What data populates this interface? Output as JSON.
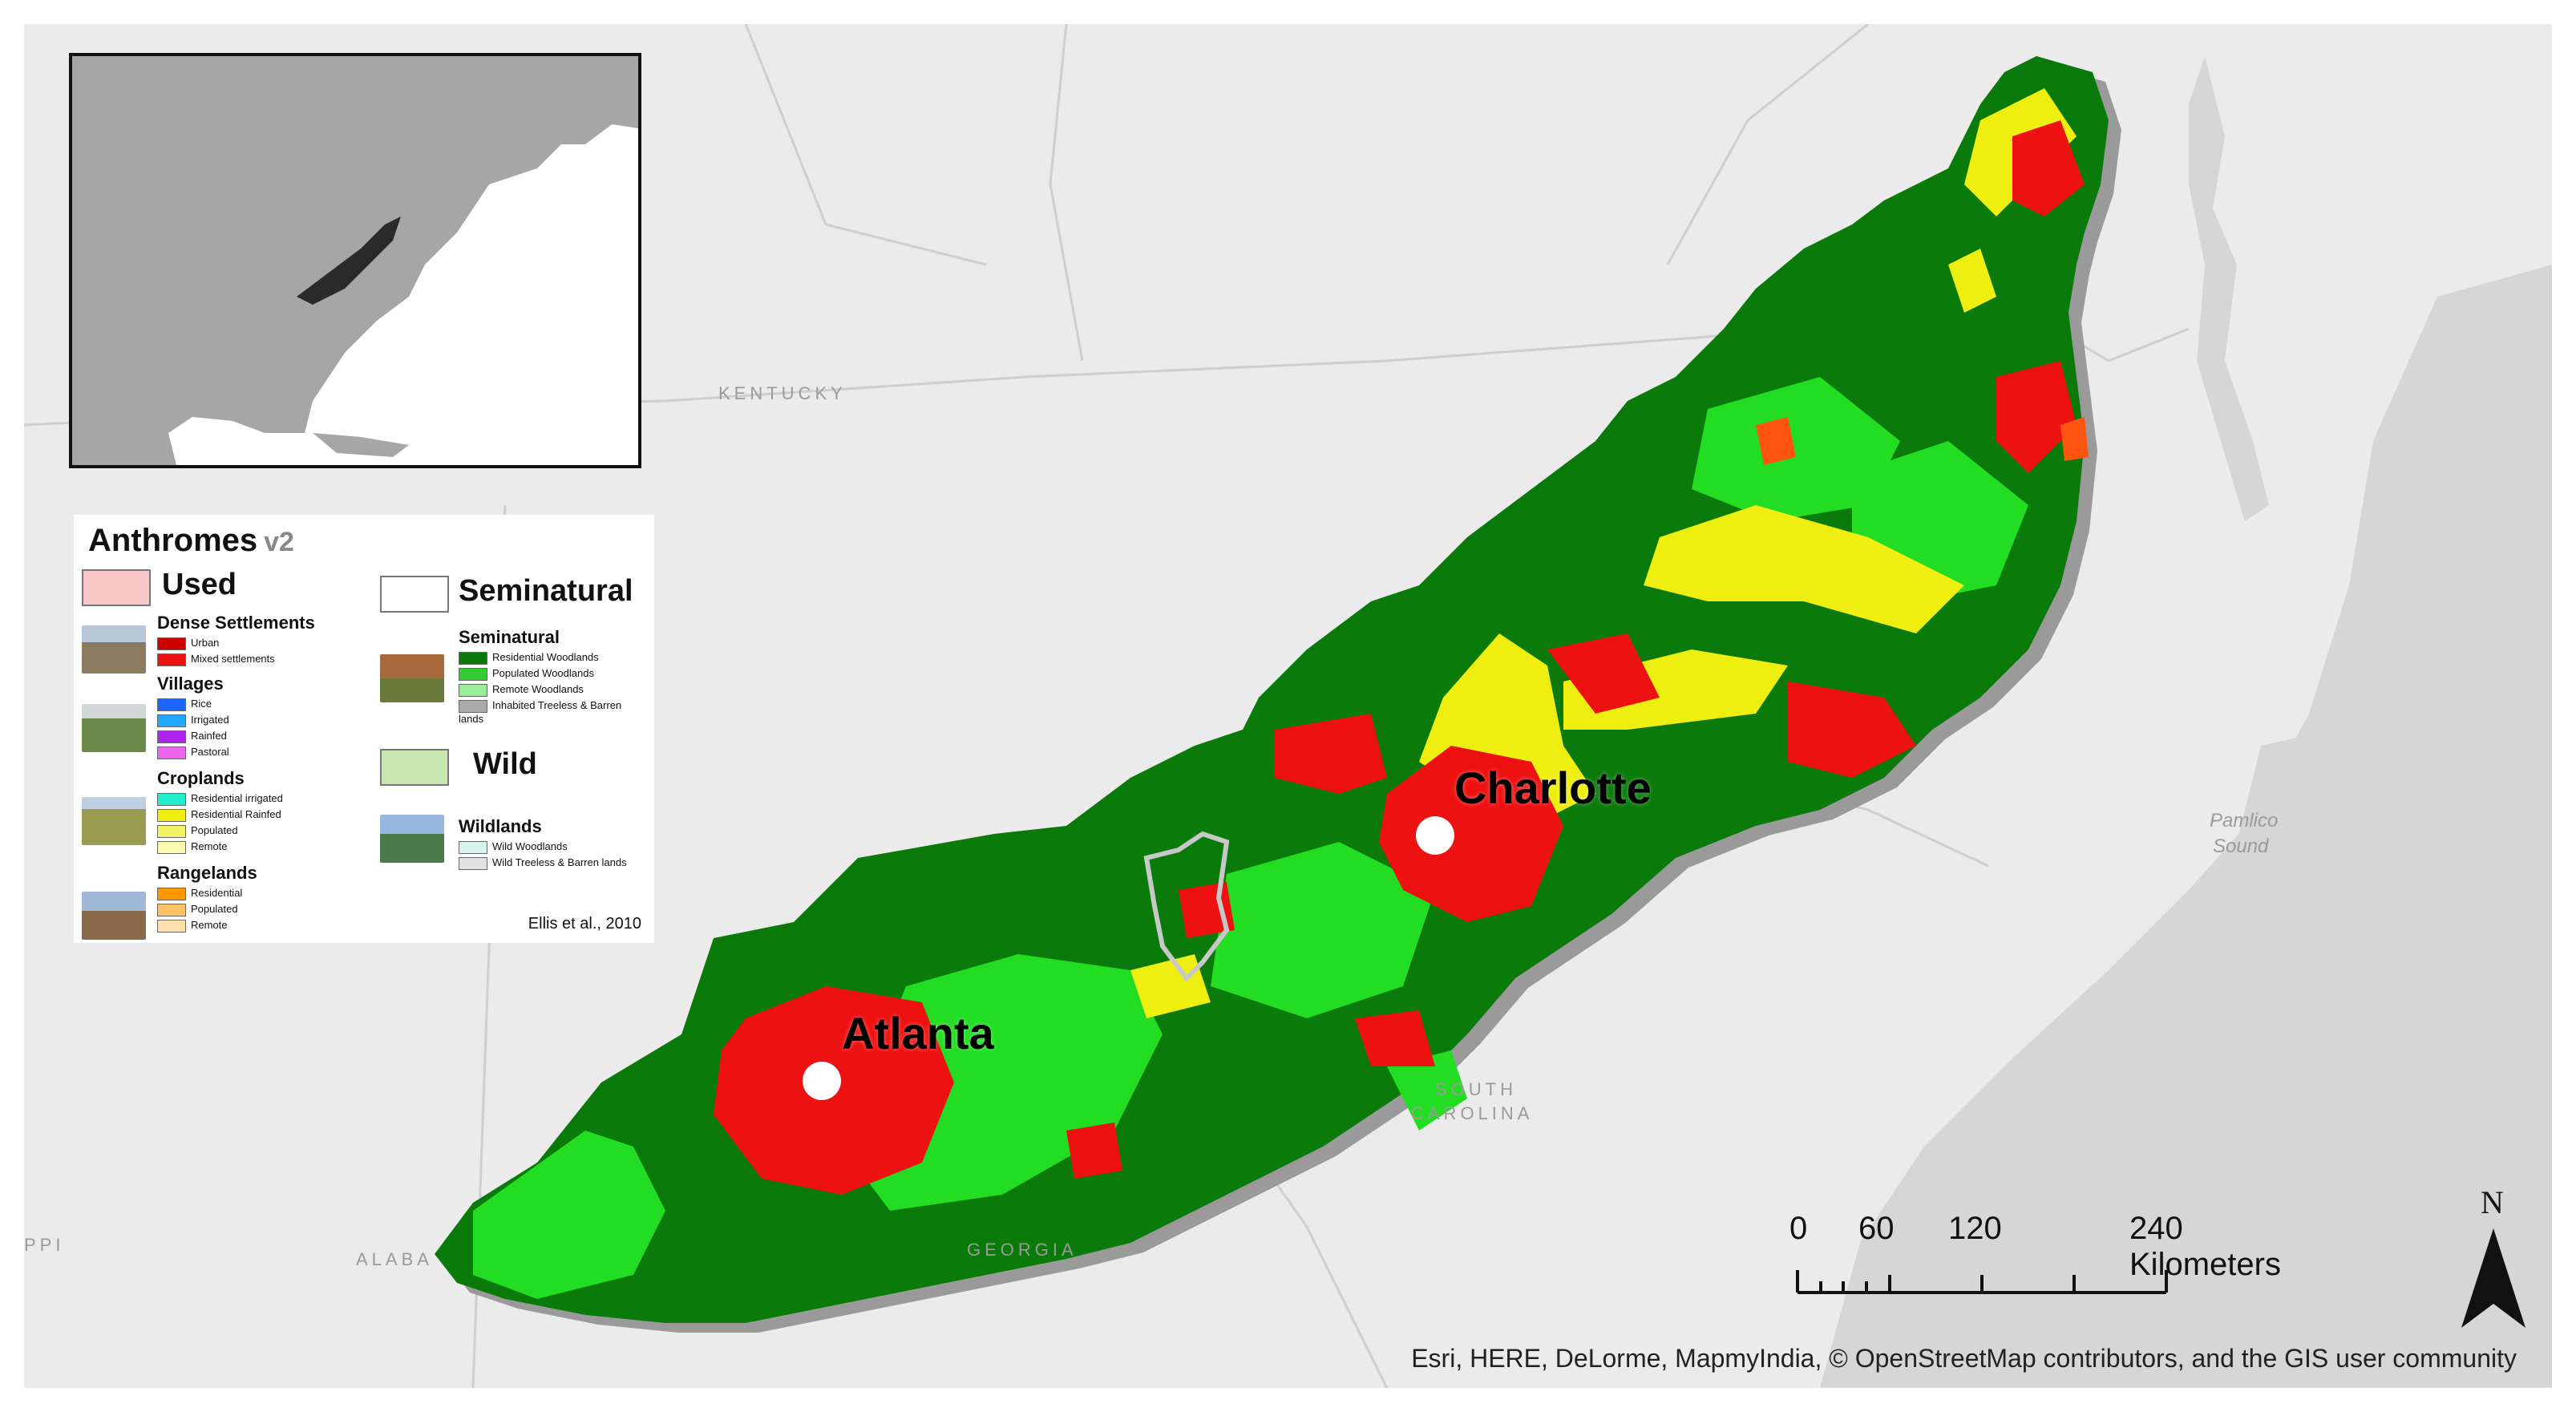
{
  "map": {
    "colors": {
      "background": "#e8e8e8",
      "water": "#d4d4d4",
      "land": "#ececec",
      "border": "#cfcfcf",
      "shadow": "#9a9a9a",
      "dark_green": "#0a7a0a",
      "light_green": "#22dd22",
      "red": "#ee1111",
      "yellow": "#eeee11",
      "orange_red": "#ff5511",
      "city_dot": "#ffffff"
    },
    "cities": [
      {
        "name": "Charlotte"
      },
      {
        "name": "Atlanta"
      }
    ],
    "reference_labels": [
      {
        "text": "KENTUCKY"
      },
      {
        "text": "SOUTH"
      },
      {
        "text": "CAROLINA"
      },
      {
        "text": "GEORGIA"
      },
      {
        "text": "ALABA"
      },
      {
        "text": "PPI"
      }
    ],
    "water_labels": [
      {
        "text": "Pamlico"
      },
      {
        "text": "Sound"
      }
    ]
  },
  "legend": {
    "title": "Anthromes",
    "version": "v2",
    "used_label": "Used",
    "seminatural_label": "Seminatural",
    "wild_label": "Wild",
    "citation": "Ellis et al., 2010",
    "groups": [
      {
        "name": "Dense Settlements",
        "items": [
          {
            "label": "Urban",
            "color": "#cc0000"
          },
          {
            "label": "Mixed settlements",
            "color": "#ee1111"
          }
        ]
      },
      {
        "name": "Villages",
        "items": [
          {
            "label": "Rice",
            "color": "#1a66ff"
          },
          {
            "label": "Irrigated",
            "color": "#22a8ff"
          },
          {
            "label": "Rainfed",
            "color": "#b022ee"
          },
          {
            "label": "Pastoral",
            "color": "#ee66ee"
          }
        ]
      },
      {
        "name": "Croplands",
        "items": [
          {
            "label": "Residential irrigated",
            "color": "#22eecc"
          },
          {
            "label": "Residential Rainfed",
            "color": "#eeee11"
          },
          {
            "label": "Populated",
            "color": "#f2f266"
          },
          {
            "label": "Remote",
            "color": "#fafab0"
          }
        ]
      },
      {
        "name": "Rangelands",
        "items": [
          {
            "label": "Residential",
            "color": "#ff9900"
          },
          {
            "label": "Populated",
            "color": "#ffc266"
          },
          {
            "label": "Remote",
            "color": "#ffe0aa"
          }
        ]
      },
      {
        "name": "Seminatural",
        "items": [
          {
            "label": "Residential Woodlands",
            "color": "#0a7a0a"
          },
          {
            "label": "Populated Woodlands",
            "color": "#33cc33"
          },
          {
            "label": "Remote Woodlands",
            "color": "#99ee99"
          },
          {
            "label": "Inhabited Treeless & Barren lands",
            "color": "#aaaaaa"
          }
        ]
      },
      {
        "name": "Wildlands",
        "items": [
          {
            "label": "Wild Woodlands",
            "color": "#d8f2ee"
          },
          {
            "label": "Wild Treeless & Barren lands",
            "color": "#e2e2e2"
          }
        ]
      }
    ],
    "head_colors": {
      "used": "#f8c8c8",
      "seminatural": "#ffffff",
      "wild": "#c8e6b0"
    }
  },
  "scale": {
    "ticks": [
      "0",
      "60",
      "120",
      "240 Kilometers"
    ],
    "values_km": [
      0,
      60,
      120,
      240
    ]
  },
  "north_arrow": {
    "label": "N"
  },
  "attribution": "Esri, HERE, DeLorme, MapmyIndia, © OpenStreetMap contributors, and the GIS user community"
}
